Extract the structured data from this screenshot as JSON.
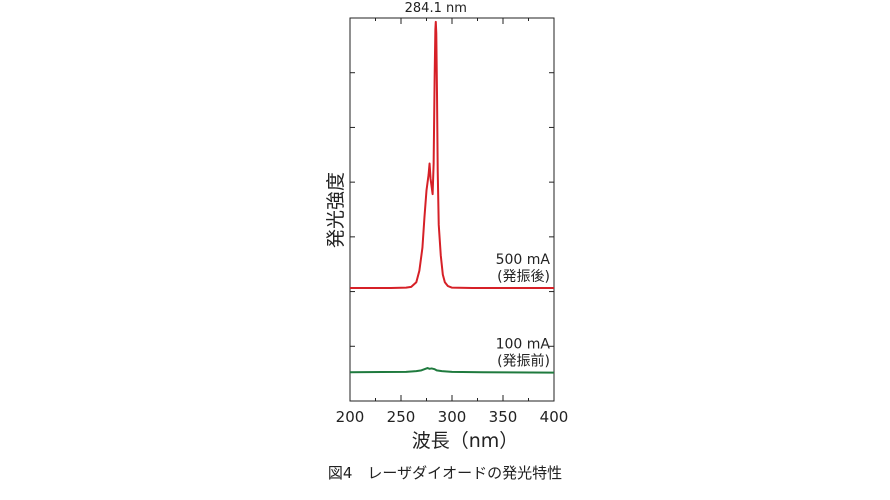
{
  "chart_data": {
    "type": "line",
    "ylabel": "発光強度",
    "xlabel": "波長（nm）",
    "xlim": [
      200,
      400
    ],
    "x_ticks": [
      200,
      250,
      300,
      350,
      400
    ],
    "x_tick_labels": [
      "200",
      "250",
      "300",
      "350",
      "400"
    ],
    "ylim": [
      0,
      100
    ],
    "y_tick_count": 7,
    "y_tick_labels_shown": false,
    "grid": false,
    "annotations": [
      {
        "text": "284.1 nm",
        "x": 284.1
      }
    ],
    "series": [
      {
        "label_line1": "500 mA",
        "label_line2": "(発振後)",
        "color": "#d62027",
        "points": [
          [
            200,
            29.5
          ],
          [
            240,
            29.5
          ],
          [
            255,
            29.6
          ],
          [
            260,
            29.8
          ],
          [
            265,
            31
          ],
          [
            268,
            34
          ],
          [
            271,
            40
          ],
          [
            273,
            48
          ],
          [
            275,
            55
          ],
          [
            277,
            59
          ],
          [
            278,
            62
          ],
          [
            279,
            58
          ],
          [
            281,
            54
          ],
          [
            282,
            62
          ],
          [
            283,
            85
          ],
          [
            283.7,
            97
          ],
          [
            284.1,
            99
          ],
          [
            284.6,
            96
          ],
          [
            285.3,
            80
          ],
          [
            286,
            60
          ],
          [
            287,
            46
          ],
          [
            289,
            38
          ],
          [
            291,
            33
          ],
          [
            293,
            31
          ],
          [
            296,
            30
          ],
          [
            300,
            29.6
          ],
          [
            320,
            29.5
          ],
          [
            400,
            29.5
          ]
        ]
      },
      {
        "label_line1": "100 mA",
        "label_line2": "(発振前)",
        "color": "#1f7a3e",
        "points": [
          [
            200,
            7.5
          ],
          [
            255,
            7.6
          ],
          [
            265,
            7.8
          ],
          [
            270,
            8.0
          ],
          [
            273,
            8.3
          ],
          [
            276,
            8.6
          ],
          [
            278,
            8.4
          ],
          [
            280,
            8.5
          ],
          [
            283,
            8.3
          ],
          [
            285,
            8.0
          ],
          [
            290,
            7.8
          ],
          [
            300,
            7.6
          ],
          [
            330,
            7.5
          ],
          [
            400,
            7.4
          ]
        ]
      }
    ]
  },
  "caption": "図4　レーザダイオードの発光特性"
}
